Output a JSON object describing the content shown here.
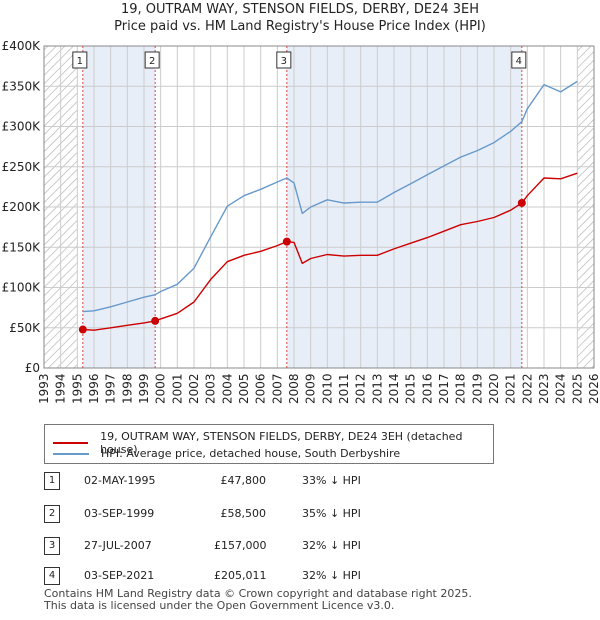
{
  "title_line1": "19, OUTRAM WAY, STENSON FIELDS, DERBY, DE24 3EH",
  "title_line2": "Price paid vs. HM Land Registry's House Price Index (HPI)",
  "legend": {
    "property_label": "19, OUTRAM WAY, STENSON FIELDS, DERBY, DE24 3EH (detached house)",
    "hpi_label": "HPI: Average price, detached house, South Derbyshire"
  },
  "colors": {
    "property": "#cc0000",
    "hpi": "#6699cc",
    "shade": "#e8eef8",
    "grid": "#cccccc",
    "marker_line": "#dd4444"
  },
  "sales": [
    {
      "num": "1",
      "date": "02-MAY-1995",
      "price": "£47,800",
      "hpi": "33% ↓ HPI"
    },
    {
      "num": "2",
      "date": "03-SEP-1999",
      "price": "£58,500",
      "hpi": "35% ↓ HPI"
    },
    {
      "num": "3",
      "date": "27-JUL-2007",
      "price": "£157,000",
      "hpi": "32% ↓ HPI"
    },
    {
      "num": "4",
      "date": "03-SEP-2021",
      "price": "£205,011",
      "hpi": "32% ↓ HPI"
    }
  ],
  "footer": {
    "line1": "Contains HM Land Registry data © Crown copyright and database right 2025.",
    "line2": "This data is licensed under the Open Government Licence v3.0."
  },
  "chart_data": {
    "type": "line",
    "xlim": [
      1993,
      2026
    ],
    "ylim": [
      0,
      400000
    ],
    "y_ticks": [
      0,
      50000,
      100000,
      150000,
      200000,
      250000,
      300000,
      350000,
      400000
    ],
    "y_tick_labels": [
      "£0",
      "£50K",
      "£100K",
      "£150K",
      "£200K",
      "£250K",
      "£300K",
      "£350K",
      "£400K"
    ],
    "x_ticks": [
      1993,
      1994,
      1995,
      1996,
      1997,
      1998,
      1999,
      2000,
      2001,
      2002,
      2003,
      2004,
      2005,
      2006,
      2007,
      2008,
      2009,
      2010,
      2011,
      2012,
      2013,
      2014,
      2015,
      2016,
      2017,
      2018,
      2019,
      2020,
      2021,
      2022,
      2023,
      2024,
      2025,
      2026
    ],
    "hatched_ranges": [
      [
        1993,
        1995.0
      ],
      [
        2025.0,
        2026
      ]
    ],
    "sale_markers": [
      {
        "label": "1",
        "x": 1995.33,
        "y": 47800
      },
      {
        "label": "2",
        "x": 1999.67,
        "y": 58500
      },
      {
        "label": "3",
        "x": 2007.57,
        "y": 157000
      },
      {
        "label": "4",
        "x": 2021.67,
        "y": 205011
      }
    ],
    "series": [
      {
        "name": "19, OUTRAM WAY, STENSON FIELDS, DERBY, DE24 3EH (detached house)",
        "x": [
          1995.33,
          1996,
          1997,
          1998,
          1999,
          1999.67,
          2000,
          2001,
          2002,
          2003,
          2004,
          2005,
          2006,
          2007,
          2007.57,
          2008,
          2008.5,
          2009,
          2010,
          2011,
          2012,
          2013,
          2014,
          2015,
          2016,
          2017,
          2018,
          2019,
          2020,
          2021,
          2021.67,
          2022,
          2023,
          2024,
          2025
        ],
        "y": [
          47800,
          47000,
          50000,
          53000,
          56000,
          58500,
          61000,
          68000,
          82000,
          110000,
          132000,
          140000,
          145000,
          152000,
          157000,
          156000,
          130000,
          136000,
          141000,
          139000,
          140000,
          140000,
          148000,
          155000,
          162000,
          170000,
          178000,
          182000,
          187000,
          196000,
          205011,
          214000,
          236000,
          235000,
          242000
        ]
      },
      {
        "name": "HPI: Average price, detached house, South Derbyshire",
        "x": [
          1995.33,
          1996,
          1997,
          1998,
          1999,
          1999.67,
          2000,
          2001,
          2002,
          2003,
          2004,
          2005,
          2006,
          2007,
          2007.57,
          2008,
          2008.5,
          2009,
          2010,
          2011,
          2012,
          2013,
          2014,
          2015,
          2016,
          2017,
          2018,
          2019,
          2020,
          2021,
          2021.67,
          2022,
          2023,
          2024,
          2025
        ],
        "y": [
          70000,
          71000,
          76000,
          82000,
          88000,
          91000,
          95000,
          104000,
          124000,
          163000,
          201000,
          214000,
          222000,
          231000,
          236000,
          230000,
          192000,
          200000,
          209000,
          205000,
          206000,
          206000,
          218000,
          229000,
          240000,
          251000,
          262000,
          270000,
          280000,
          294000,
          306000,
          322000,
          352000,
          343000,
          356000
        ]
      }
    ]
  }
}
